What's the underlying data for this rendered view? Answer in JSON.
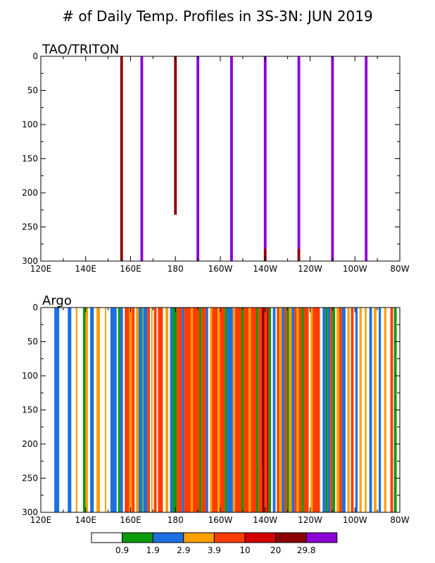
{
  "title": "# of Daily Temp. Profiles in 3S-3N: JUN 2019",
  "colors": {
    "white": "#ffffff",
    "green": "#0a9a0a",
    "blue": "#1e6fe0",
    "orange": "#ff9f00",
    "red_orange": "#ff3c00",
    "red": "#d40000",
    "dark_red": "#8b0000",
    "purple": "#8a00d4"
  },
  "chart_data": [
    {
      "type": "bar",
      "title": "TAO/TRITON",
      "xlim": [
        120,
        280
      ],
      "ylim": [
        0,
        300
      ],
      "y_inverted": true,
      "xticks": [
        120,
        140,
        160,
        180,
        200,
        220,
        240,
        260,
        280
      ],
      "xtick_labels": [
        "120E",
        "140E",
        "160E",
        "180",
        "160W",
        "140W",
        "120W",
        "100W",
        "80W"
      ],
      "yticks": [
        0,
        50,
        100,
        150,
        200,
        250,
        300
      ],
      "ytick_labels": [
        "0",
        "50",
        "100",
        "150",
        "200",
        "250",
        "300"
      ],
      "bar_width_deg": 1.2,
      "bars": [
        {
          "lon": 156,
          "segments": [
            {
              "top": 0,
              "bottom": 300,
              "color": "dark_red"
            }
          ]
        },
        {
          "lon": 165,
          "segments": [
            {
              "top": 0,
              "bottom": 300,
              "color": "purple"
            }
          ]
        },
        {
          "lon": 180,
          "segments": [
            {
              "top": 0,
              "bottom": 232,
              "color": "dark_red"
            }
          ]
        },
        {
          "lon": 190,
          "segments": [
            {
              "top": 0,
              "bottom": 300,
              "color": "purple"
            }
          ]
        },
        {
          "lon": 205,
          "segments": [
            {
              "top": 0,
              "bottom": 300,
              "color": "purple"
            }
          ]
        },
        {
          "lon": 220,
          "segments": [
            {
              "top": 0,
              "bottom": 282,
              "color": "purple"
            },
            {
              "top": 282,
              "bottom": 300,
              "color": "dark_red"
            }
          ]
        },
        {
          "lon": 235,
          "segments": [
            {
              "top": 0,
              "bottom": 282,
              "color": "purple"
            },
            {
              "top": 282,
              "bottom": 300,
              "color": "dark_red"
            }
          ]
        },
        {
          "lon": 250,
          "segments": [
            {
              "top": 0,
              "bottom": 300,
              "color": "purple"
            }
          ]
        },
        {
          "lon": 265,
          "segments": [
            {
              "top": 0,
              "bottom": 300,
              "color": "purple"
            }
          ]
        }
      ]
    },
    {
      "type": "bar",
      "title": "Argo",
      "xlim": [
        120,
        280
      ],
      "ylim": [
        0,
        300
      ],
      "y_inverted": true,
      "xticks": [
        120,
        140,
        160,
        180,
        200,
        220,
        240,
        260,
        280
      ],
      "xtick_labels": [
        "120E",
        "140E",
        "160E",
        "180",
        "160W",
        "140W",
        "120W",
        "100W",
        "80W"
      ],
      "yticks": [
        0,
        50,
        100,
        150,
        200,
        250,
        300
      ],
      "ytick_labels": [
        "0",
        "50",
        "100",
        "150",
        "200",
        "250",
        "300"
      ],
      "bands": [
        {
          "lon0": 126.0,
          "lon1": 128.2,
          "color": "blue"
        },
        {
          "lon0": 132.0,
          "lon1": 133.6,
          "color": "blue"
        },
        {
          "lon0": 135.6,
          "lon1": 136.3,
          "color": "orange"
        },
        {
          "lon0": 138.8,
          "lon1": 139.9,
          "color": "green"
        },
        {
          "lon0": 139.9,
          "lon1": 141.0,
          "color": "orange"
        },
        {
          "lon0": 142.0,
          "lon1": 143.6,
          "color": "blue"
        },
        {
          "lon0": 144.8,
          "lon1": 146.4,
          "color": "orange"
        },
        {
          "lon0": 148.6,
          "lon1": 149.2,
          "color": "orange"
        },
        {
          "lon0": 151.0,
          "lon1": 153.8,
          "color": "blue"
        },
        {
          "lon0": 154.4,
          "lon1": 155.4,
          "color": "green"
        },
        {
          "lon0": 155.4,
          "lon1": 156.6,
          "color": "blue"
        },
        {
          "lon0": 157.4,
          "lon1": 159.4,
          "color": "red_orange"
        },
        {
          "lon0": 159.4,
          "lon1": 160.6,
          "color": "orange"
        },
        {
          "lon0": 160.6,
          "lon1": 161.8,
          "color": "red_orange"
        },
        {
          "lon0": 162.4,
          "lon1": 163.6,
          "color": "orange"
        },
        {
          "lon0": 163.6,
          "lon1": 164.8,
          "color": "blue"
        },
        {
          "lon0": 164.8,
          "lon1": 165.4,
          "color": "green"
        },
        {
          "lon0": 165.6,
          "lon1": 167.4,
          "color": "blue"
        },
        {
          "lon0": 167.4,
          "lon1": 168.6,
          "color": "red_orange"
        },
        {
          "lon0": 169.2,
          "lon1": 169.8,
          "color": "orange"
        },
        {
          "lon0": 170.4,
          "lon1": 171.6,
          "color": "red_orange"
        },
        {
          "lon0": 172.2,
          "lon1": 174.4,
          "color": "red_orange"
        },
        {
          "lon0": 175.6,
          "lon1": 176.8,
          "color": "orange"
        },
        {
          "lon0": 177.6,
          "lon1": 178.8,
          "color": "blue"
        },
        {
          "lon0": 178.8,
          "lon1": 180.6,
          "color": "green"
        },
        {
          "lon0": 180.6,
          "lon1": 182.8,
          "color": "red_orange"
        },
        {
          "lon0": 182.8,
          "lon1": 183.8,
          "color": "blue"
        },
        {
          "lon0": 183.8,
          "lon1": 186.8,
          "color": "red_orange"
        },
        {
          "lon0": 186.8,
          "lon1": 187.8,
          "color": "orange"
        },
        {
          "lon0": 187.8,
          "lon1": 190.6,
          "color": "red_orange"
        },
        {
          "lon0": 190.6,
          "lon1": 191.6,
          "color": "green"
        },
        {
          "lon0": 191.6,
          "lon1": 193.6,
          "color": "red_orange"
        },
        {
          "lon0": 193.6,
          "lon1": 194.6,
          "color": "blue"
        },
        {
          "lon0": 195.4,
          "lon1": 196.4,
          "color": "orange"
        },
        {
          "lon0": 196.4,
          "lon1": 198.8,
          "color": "red_orange"
        },
        {
          "lon0": 198.8,
          "lon1": 199.8,
          "color": "orange"
        },
        {
          "lon0": 199.8,
          "lon1": 202.0,
          "color": "red_orange"
        },
        {
          "lon0": 202.0,
          "lon1": 203.0,
          "color": "green"
        },
        {
          "lon0": 203.0,
          "lon1": 205.6,
          "color": "blue"
        },
        {
          "lon0": 205.6,
          "lon1": 206.6,
          "color": "orange"
        },
        {
          "lon0": 206.6,
          "lon1": 209.4,
          "color": "red_orange"
        },
        {
          "lon0": 209.4,
          "lon1": 210.4,
          "color": "green"
        },
        {
          "lon0": 210.4,
          "lon1": 212.6,
          "color": "red_orange"
        },
        {
          "lon0": 212.6,
          "lon1": 213.6,
          "color": "orange"
        },
        {
          "lon0": 213.6,
          "lon1": 216.0,
          "color": "red_orange"
        },
        {
          "lon0": 216.0,
          "lon1": 217.0,
          "color": "green"
        },
        {
          "lon0": 217.0,
          "lon1": 218.6,
          "color": "red_orange"
        },
        {
          "lon0": 218.6,
          "lon1": 219.6,
          "color": "dark_red"
        },
        {
          "lon0": 219.6,
          "lon1": 220.6,
          "color": "red_orange"
        },
        {
          "lon0": 220.6,
          "lon1": 221.6,
          "color": "red"
        },
        {
          "lon0": 221.6,
          "lon1": 222.6,
          "color": "green"
        },
        {
          "lon0": 223.4,
          "lon1": 224.6,
          "color": "blue"
        },
        {
          "lon0": 225.2,
          "lon1": 226.2,
          "color": "red_orange"
        },
        {
          "lon0": 226.2,
          "lon1": 227.4,
          "color": "orange"
        },
        {
          "lon0": 227.4,
          "lon1": 228.6,
          "color": "blue"
        },
        {
          "lon0": 228.6,
          "lon1": 229.6,
          "color": "red_orange"
        },
        {
          "lon0": 229.6,
          "lon1": 230.6,
          "color": "green"
        },
        {
          "lon0": 230.6,
          "lon1": 231.8,
          "color": "orange"
        },
        {
          "lon0": 231.8,
          "lon1": 233.0,
          "color": "blue"
        },
        {
          "lon0": 233.0,
          "lon1": 234.0,
          "color": "red_orange"
        },
        {
          "lon0": 234.0,
          "lon1": 235.0,
          "color": "orange"
        },
        {
          "lon0": 235.0,
          "lon1": 236.2,
          "color": "red_orange"
        },
        {
          "lon0": 236.2,
          "lon1": 237.2,
          "color": "green"
        },
        {
          "lon0": 237.2,
          "lon1": 239.4,
          "color": "red_orange"
        },
        {
          "lon0": 240.2,
          "lon1": 241.2,
          "color": "orange"
        },
        {
          "lon0": 241.2,
          "lon1": 244.4,
          "color": "red_orange"
        },
        {
          "lon0": 245.6,
          "lon1": 246.8,
          "color": "blue"
        },
        {
          "lon0": 246.8,
          "lon1": 247.8,
          "color": "green"
        },
        {
          "lon0": 247.8,
          "lon1": 249.0,
          "color": "blue"
        },
        {
          "lon0": 249.0,
          "lon1": 250.0,
          "color": "red_orange"
        },
        {
          "lon0": 250.0,
          "lon1": 251.2,
          "color": "green"
        },
        {
          "lon0": 251.8,
          "lon1": 253.0,
          "color": "orange"
        },
        {
          "lon0": 253.0,
          "lon1": 254.2,
          "color": "red_orange"
        },
        {
          "lon0": 254.2,
          "lon1": 255.8,
          "color": "blue"
        },
        {
          "lon0": 256.6,
          "lon1": 257.6,
          "color": "orange"
        },
        {
          "lon0": 258.2,
          "lon1": 259.4,
          "color": "red_orange"
        },
        {
          "lon0": 260.2,
          "lon1": 261.2,
          "color": "blue"
        },
        {
          "lon0": 262.0,
          "lon1": 263.0,
          "color": "orange"
        },
        {
          "lon0": 264.4,
          "lon1": 265.2,
          "color": "orange"
        },
        {
          "lon0": 266.4,
          "lon1": 267.6,
          "color": "blue"
        },
        {
          "lon0": 268.4,
          "lon1": 269.6,
          "color": "orange"
        },
        {
          "lon0": 270.6,
          "lon1": 271.6,
          "color": "blue"
        },
        {
          "lon0": 273.0,
          "lon1": 274.0,
          "color": "orange"
        },
        {
          "lon0": 275.8,
          "lon1": 277.0,
          "color": "red_orange"
        },
        {
          "lon0": 277.4,
          "lon1": 278.6,
          "color": "green"
        }
      ],
      "overlays": [
        {
          "lon": 219.0,
          "top": 0,
          "bottom": 232,
          "color": "dark_red"
        }
      ]
    }
  ],
  "colorbar": {
    "colors": [
      "white",
      "green",
      "blue",
      "orange",
      "red_orange",
      "red",
      "dark_red",
      "purple"
    ],
    "labels": [
      "0.9",
      "1.9",
      "2.9",
      "3.9",
      "10",
      "20",
      "29.8"
    ]
  }
}
